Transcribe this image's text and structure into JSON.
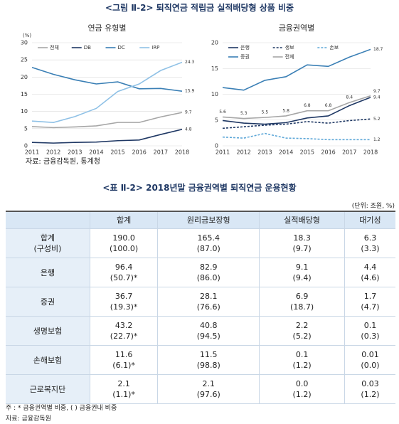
{
  "figure_title": "<그림 Ⅱ-2> 퇴직연금 적립금 실적배당형 상품 비중",
  "chart_data": [
    {
      "type": "line",
      "title": "연금 유형별",
      "unit": "(%)",
      "x": [
        2011,
        2012,
        2013,
        2014,
        2015,
        2016,
        2017,
        2018
      ],
      "xlim": [
        2011,
        2018
      ],
      "xticks": [
        2011,
        2012,
        2013,
        2014,
        2015,
        2016,
        2017,
        2018
      ],
      "ylim": [
        0,
        30
      ],
      "yticks": [
        0,
        5,
        10,
        15,
        20,
        25,
        30
      ],
      "grid": true,
      "legend": "top",
      "legend_columns": 4,
      "data_labels": "last",
      "series": [
        {
          "name": "전체",
          "color": "#a6a6a6",
          "values": [
            5.6,
            5.3,
            5.5,
            5.8,
            6.8,
            6.8,
            8.4,
            9.7
          ]
        },
        {
          "name": "DB",
          "color": "#1f3864",
          "values": [
            1.0,
            0.8,
            1.0,
            1.1,
            1.5,
            1.7,
            3.3,
            4.8
          ]
        },
        {
          "name": "DC",
          "color": "#3a7fb5",
          "values": [
            22.8,
            20.8,
            19.2,
            18.0,
            18.6,
            16.6,
            16.7,
            15.9
          ]
        },
        {
          "name": "IRP",
          "color": "#8fc1e6",
          "values": [
            7.2,
            6.8,
            8.5,
            10.9,
            15.8,
            18.0,
            21.9,
            24.3
          ]
        }
      ]
    },
    {
      "type": "line",
      "title": "금융권역별",
      "x": [
        2011,
        2012,
        2013,
        2014,
        2015,
        2016,
        2017,
        2018
      ],
      "xlim": [
        2011,
        2018
      ],
      "xticks": [
        2011,
        2012,
        2013,
        2014,
        2015,
        2016,
        2017,
        2018
      ],
      "ylim": [
        0,
        20
      ],
      "yticks": [
        0,
        5,
        10,
        15,
        20
      ],
      "grid": true,
      "legend": "top",
      "legend_columns": 3,
      "data_labels": "last",
      "series": [
        {
          "name": "은행",
          "color": "#1f3864",
          "values": [
            4.9,
            4.4,
            4.2,
            4.5,
            5.4,
            5.8,
            7.8,
            9.4
          ]
        },
        {
          "name": "생보",
          "color": "#1f3864",
          "dash": true,
          "values": [
            3.4,
            3.7,
            4.0,
            4.2,
            4.7,
            4.4,
            4.9,
            5.2
          ]
        },
        {
          "name": "손보",
          "color": "#5fa8d8",
          "dash": true,
          "values": [
            1.7,
            1.5,
            2.4,
            1.5,
            1.4,
            1.2,
            1.2,
            1.2
          ]
        },
        {
          "name": "증권",
          "color": "#3a7fb5",
          "values": [
            11.3,
            10.8,
            12.7,
            13.4,
            15.7,
            15.4,
            17.2,
            18.7
          ]
        },
        {
          "name": "전체",
          "color": "#a6a6a6",
          "data_labels": "all",
          "values": [
            5.6,
            5.3,
            5.5,
            5.8,
            6.8,
            6.8,
            8.4,
            9.7
          ]
        }
      ]
    }
  ],
  "source": "자료: 금융감독원, 통계청",
  "table": {
    "title": "<표 Ⅱ-2> 2018년말 금융권역별 퇴직연금 운용현황",
    "unit": "(단위: 조원, %)",
    "header": [
      "합계",
      "원리금보장형",
      "실적배당형",
      "대기성"
    ],
    "rows": [
      [
        [
          "합계",
          "(구성비)"
        ],
        [
          "190.0",
          "(100.0)"
        ],
        [
          "165.4",
          "(87.0)"
        ],
        [
          "18.3",
          "(9.7)"
        ],
        [
          "6.3",
          "(3.3)"
        ]
      ],
      [
        [
          "은행"
        ],
        [
          "96.4",
          "(50.7)*"
        ],
        [
          "82.9",
          "(86.0)"
        ],
        [
          "9.1",
          "(9.4)"
        ],
        [
          "4.4",
          "(4.6)"
        ]
      ],
      [
        [
          "증권"
        ],
        [
          "36.7",
          "(19.3)*"
        ],
        [
          "28.1",
          "(76.6)"
        ],
        [
          "6.9",
          "(18.7)"
        ],
        [
          "1.7",
          "(4.7)"
        ]
      ],
      [
        [
          "생명보험"
        ],
        [
          "43.2",
          "(22.7)*"
        ],
        [
          "40.8",
          "(94.5)"
        ],
        [
          "2.2",
          "(5.2)"
        ],
        [
          "0.1",
          "(0.3)"
        ]
      ],
      [
        [
          "손해보험"
        ],
        [
          "11.6",
          "(6.1)*"
        ],
        [
          "11.5",
          "(98.8)"
        ],
        [
          "0.1",
          "(1.2)"
        ],
        [
          "0.01",
          "(0.0)"
        ]
      ],
      [
        [
          "근로복지단"
        ],
        [
          "2.1",
          "(1.1)*"
        ],
        [
          "2.1",
          "(97.6)"
        ],
        [
          "0.0",
          "(1.2)"
        ],
        [
          "0.03",
          "(1.2)"
        ]
      ]
    ],
    "notes": [
      "주 : * 금융권역별 비중, ( ) 금융권내 비중",
      "자료: 금융감독원"
    ]
  }
}
